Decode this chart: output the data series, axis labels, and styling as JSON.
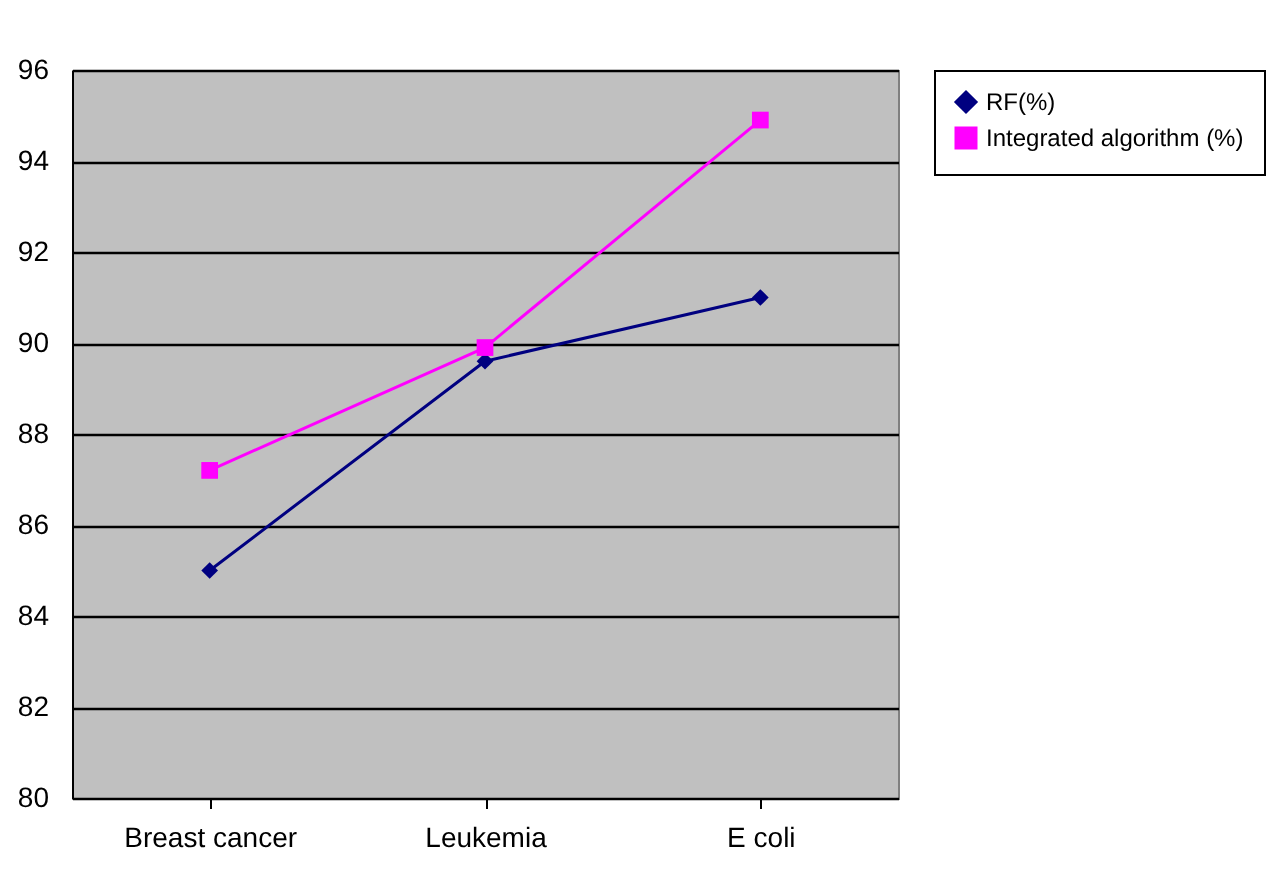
{
  "chart_data": {
    "type": "line",
    "categories": [
      "Breast cancer",
      "Leukemia",
      "E coli"
    ],
    "series": [
      {
        "name": "RF(%)",
        "color": "#000080",
        "marker": "diamond",
        "values": [
          85.0,
          89.6,
          91.0
        ]
      },
      {
        "name": "Integrated algorithm (%)",
        "color": "#ff00ff",
        "marker": "square",
        "values": [
          87.2,
          89.9,
          94.9
        ]
      }
    ],
    "ylim": [
      80,
      96
    ],
    "yticks": [
      80,
      82,
      84,
      86,
      88,
      90,
      92,
      94,
      96
    ],
    "grid": "y",
    "legend": "right"
  }
}
